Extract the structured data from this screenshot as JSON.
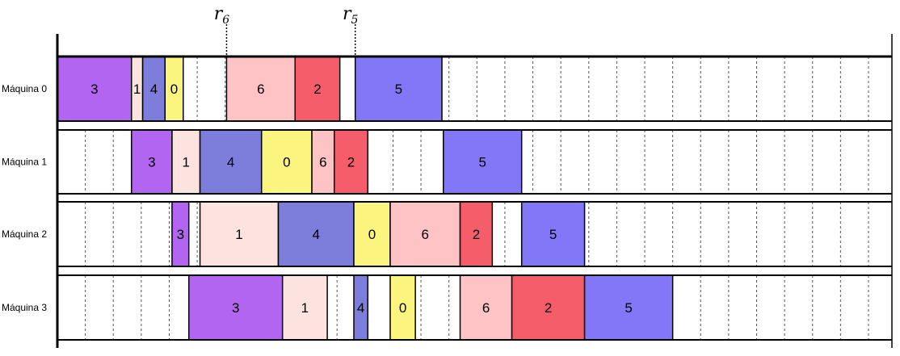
{
  "machines": [
    "Máquina 0",
    "Máquina 1",
    "Máquina 2",
    "Máquina 3"
  ],
  "markers": [
    {
      "letter": "r",
      "sub": "6",
      "job": "6"
    },
    {
      "letter": "r",
      "sub": "5",
      "job": "5"
    }
  ],
  "job_colors": {
    "0": "#fbf47f",
    "1": "#fde3df",
    "2": "#f65d6b",
    "3": "#b165f1",
    "4": "#7d7edb",
    "5": "#8277f7",
    "6": "#fdc3c5"
  },
  "schedule": [
    [
      {
        "job": "3",
        "start": 0,
        "end": 5.3
      },
      {
        "job": "1",
        "start": 5.3,
        "end": 6.1
      },
      {
        "job": "4",
        "start": 6.1,
        "end": 7.7
      },
      {
        "job": "0",
        "start": 7.7,
        "end": 9.0
      },
      {
        "job": "6",
        "start": 12.1,
        "end": 17.0
      },
      {
        "job": "2",
        "start": 17.0,
        "end": 20.2
      },
      {
        "job": "5",
        "start": 21.3,
        "end": 27.5
      }
    ],
    [
      {
        "job": "3",
        "start": 5.3,
        "end": 8.2
      },
      {
        "job": "1",
        "start": 8.2,
        "end": 10.2
      },
      {
        "job": "4",
        "start": 10.2,
        "end": 14.6
      },
      {
        "job": "0",
        "start": 14.6,
        "end": 18.2
      },
      {
        "job": "6",
        "start": 18.2,
        "end": 19.8
      },
      {
        "job": "2",
        "start": 19.8,
        "end": 22.2
      },
      {
        "job": "5",
        "start": 27.6,
        "end": 33.2
      }
    ],
    [
      {
        "job": "3",
        "start": 8.2,
        "end": 9.4
      },
      {
        "job": "1",
        "start": 10.2,
        "end": 15.8
      },
      {
        "job": "4",
        "start": 15.8,
        "end": 21.2
      },
      {
        "job": "0",
        "start": 21.2,
        "end": 23.8
      },
      {
        "job": "6",
        "start": 23.8,
        "end": 28.8
      },
      {
        "job": "2",
        "start": 28.8,
        "end": 31.1
      },
      {
        "job": "5",
        "start": 33.2,
        "end": 37.7
      }
    ],
    [
      {
        "job": "3",
        "start": 9.4,
        "end": 16.1
      },
      {
        "job": "1",
        "start": 16.1,
        "end": 19.3
      },
      {
        "job": "4",
        "start": 21.2,
        "end": 22.2
      },
      {
        "job": "0",
        "start": 23.8,
        "end": 25.6
      },
      {
        "job": "6",
        "start": 28.8,
        "end": 32.5
      },
      {
        "job": "2",
        "start": 32.5,
        "end": 37.7
      },
      {
        "job": "5",
        "start": 37.7,
        "end": 44.0
      }
    ]
  ]
}
